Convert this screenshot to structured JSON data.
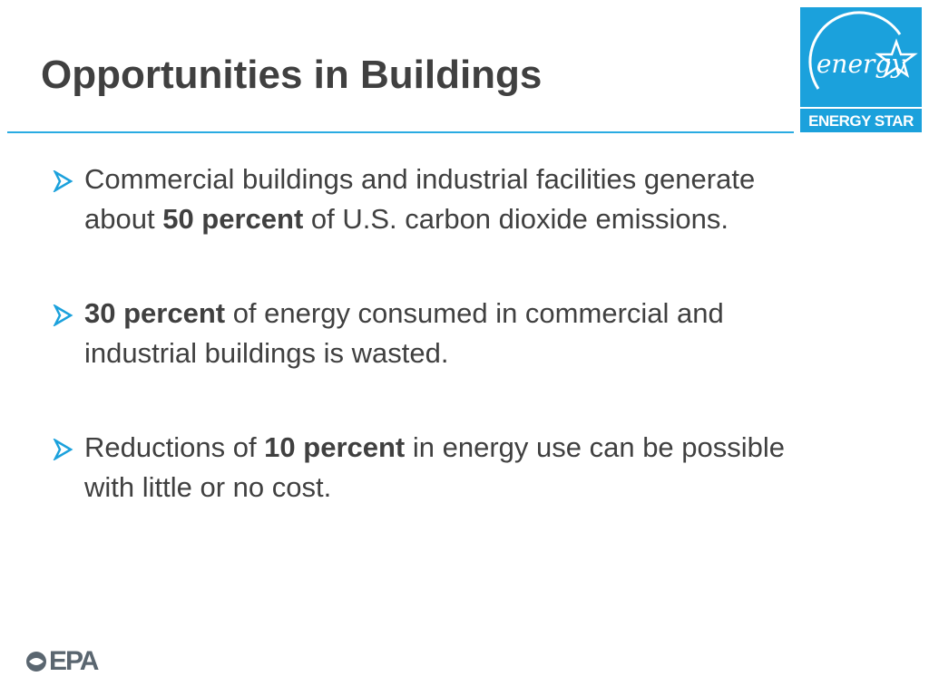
{
  "header": {
    "title": "Opportunities in Buildings"
  },
  "logo": {
    "script": "energy",
    "label": "ENERGY STAR"
  },
  "bullets": [
    {
      "parts": [
        {
          "text": "Commercial buildings and industrial facilities generate about ",
          "bold": false
        },
        {
          "text": "50 percent",
          "bold": true
        },
        {
          "text": " of U.S. carbon dioxide emissions.",
          "bold": false
        }
      ]
    },
    {
      "parts": [
        {
          "text": "30 percent",
          "bold": true
        },
        {
          "text": " of energy consumed in commercial and industrial buildings is wasted.",
          "bold": false
        }
      ]
    },
    {
      "parts": [
        {
          "text": "Reductions of ",
          "bold": false
        },
        {
          "text": "10 percent",
          "bold": true
        },
        {
          "text": " in energy use can be possible with little or no cost.",
          "bold": false
        }
      ]
    }
  ],
  "footer": {
    "logo": "EPA"
  }
}
